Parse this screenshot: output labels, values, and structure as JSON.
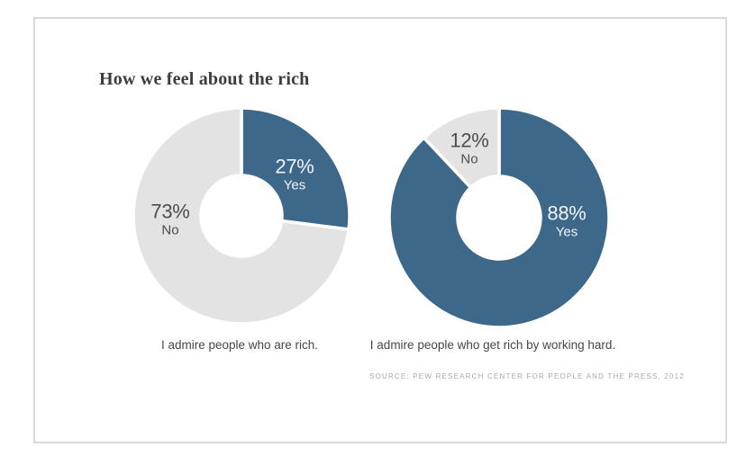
{
  "title": "How we feel about the rich",
  "source": "SOURCE: PEW RESEARCH CENTER FOR PEOPLE AND THE PRESS, 2012",
  "colors": {
    "yes_blue": "#3e6889",
    "no_gray": "#e3e3e3",
    "label_light": "#eef3f6",
    "label_dark": "#4d4d4d",
    "frame_border": "#d9d9d9",
    "background": "#ffffff"
  },
  "chart_data": [
    {
      "type": "pie",
      "subtype": "donut",
      "caption": "I admire people who are rich.",
      "start_angle_deg": 0,
      "direction": "clockwise",
      "slices": [
        {
          "label": "Yes",
          "value": 27,
          "color": "#3e6889",
          "label_color": "#eef3f6"
        },
        {
          "label": "No",
          "value": 73,
          "color": "#e3e3e3",
          "label_color": "#4d4d4d"
        }
      ]
    },
    {
      "type": "pie",
      "subtype": "donut",
      "caption": "I admire people who get rich by working hard.",
      "start_angle_deg": 0,
      "direction": "clockwise",
      "slices": [
        {
          "label": "Yes",
          "value": 88,
          "color": "#3e6889",
          "label_color": "#eef3f6"
        },
        {
          "label": "No",
          "value": 12,
          "color": "#e3e3e3",
          "label_color": "#4d4d4d"
        }
      ]
    }
  ]
}
